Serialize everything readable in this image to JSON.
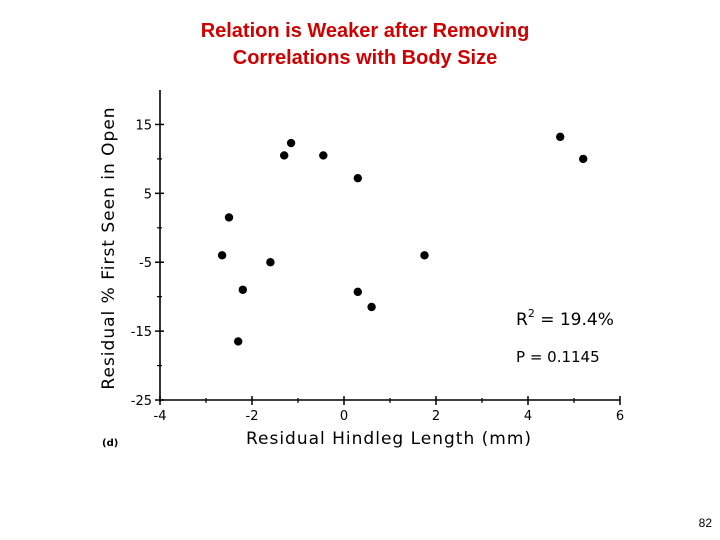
{
  "slide": {
    "title_line1": "Relation is Weaker after Removing",
    "title_line2": "Correlations with Body Size",
    "page_number": "82"
  },
  "chart_data": {
    "type": "scatter",
    "panel_label": "(d)",
    "xlabel": "Residual Hindleg Length (mm)",
    "ylabel": "Residual % First Seen in Open",
    "xlim": [
      -4,
      6
    ],
    "ylim": [
      -25,
      20
    ],
    "xticks": [
      -4,
      -2,
      0,
      2,
      4,
      6
    ],
    "yticks": [
      -25,
      -15,
      -5,
      5,
      15
    ],
    "grid": false,
    "points": [
      {
        "x": -2.5,
        "y": 1.5
      },
      {
        "x": -2.65,
        "y": -4
      },
      {
        "x": -2.3,
        "y": -16.5
      },
      {
        "x": -2.2,
        "y": -9
      },
      {
        "x": -1.6,
        "y": -5
      },
      {
        "x": -1.3,
        "y": 10.5
      },
      {
        "x": -1.15,
        "y": 12.3
      },
      {
        "x": -0.45,
        "y": 10.5
      },
      {
        "x": 0.3,
        "y": 7.2
      },
      {
        "x": 0.3,
        "y": -9.3
      },
      {
        "x": 0.6,
        "y": -11.5
      },
      {
        "x": 1.75,
        "y": -4
      },
      {
        "x": 4.7,
        "y": 13.2
      },
      {
        "x": 5.2,
        "y": 10
      }
    ],
    "annotations": {
      "r2_prefix": "R",
      "r2_exp": "2",
      "r2_value": " = 19.4%",
      "p_value": "P = 0.1145"
    },
    "colors": {
      "title": "#d00000",
      "marks": "#000000"
    }
  }
}
